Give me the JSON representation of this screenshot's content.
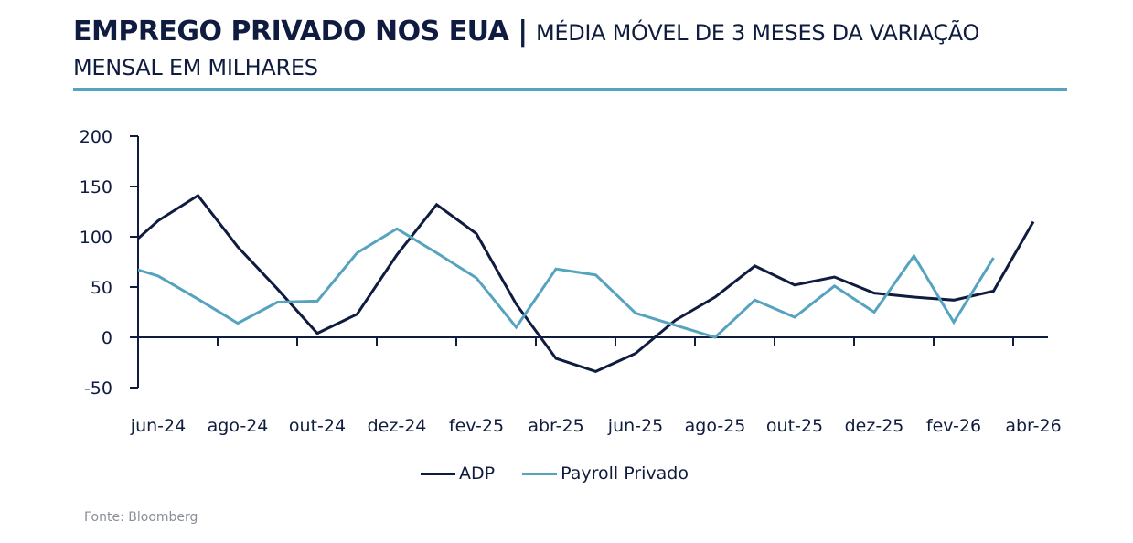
{
  "header": {
    "title_bold": "EMPREGO PRIVADO NOS EUA |",
    "title_rest": "MÉDIA MÓVEL DE 3 MESES DA VARIAÇÃO MENSAL EM MILHARES"
  },
  "colors": {
    "adp": "#0f1c3f",
    "payroll": "#56a3bf",
    "axis": "#0f1c3f",
    "rule": "#56a3bf"
  },
  "source": "Fonte: Bloomberg",
  "chart_data": {
    "type": "line",
    "title": "EMPREGO PRIVADO NOS EUA | MÉDIA MÓVEL DE 3 MESES DA VARIAÇÃO MENSAL EM MILHARES",
    "xlabel": "",
    "ylabel": "",
    "ylim": [
      -50,
      200
    ],
    "yticks": [
      -50,
      0,
      50,
      100,
      150,
      200
    ],
    "xtick_labels": [
      "jun-24",
      "ago-24",
      "out-24",
      "dez-24",
      "fev-25",
      "abr-25",
      "jun-25",
      "ago-25",
      "out-25",
      "dez-25",
      "fev-26",
      "abr-26"
    ],
    "x": [
      "mai-24",
      "jun-24",
      "jul-24",
      "ago-24",
      "set-24",
      "out-24",
      "nov-24",
      "dez-24",
      "jan-25",
      "fev-25",
      "mar-25",
      "abr-25",
      "mai-25",
      "jun-25",
      "jul-25",
      "ago-25",
      "set-25",
      "out-25",
      "nov-25",
      "dez-25",
      "jan-26",
      "fev-26",
      "mar-26",
      "abr-26"
    ],
    "series": [
      {
        "name": "ADP",
        "values": [
          81,
          116,
          141,
          90,
          48,
          4,
          23,
          82,
          132,
          103,
          33,
          -21,
          -34,
          -16,
          17,
          40,
          71,
          52,
          60,
          44,
          40,
          37,
          46,
          115
        ]
      },
      {
        "name": "Payroll Privado",
        "values": [
          73,
          61,
          38,
          14,
          35,
          36,
          84,
          108,
          84,
          59,
          10,
          68,
          62,
          24,
          12,
          0,
          37,
          20,
          51,
          25,
          81,
          15,
          79,
          null
        ]
      }
    ],
    "legend": "bottom-center",
    "grid": false
  }
}
